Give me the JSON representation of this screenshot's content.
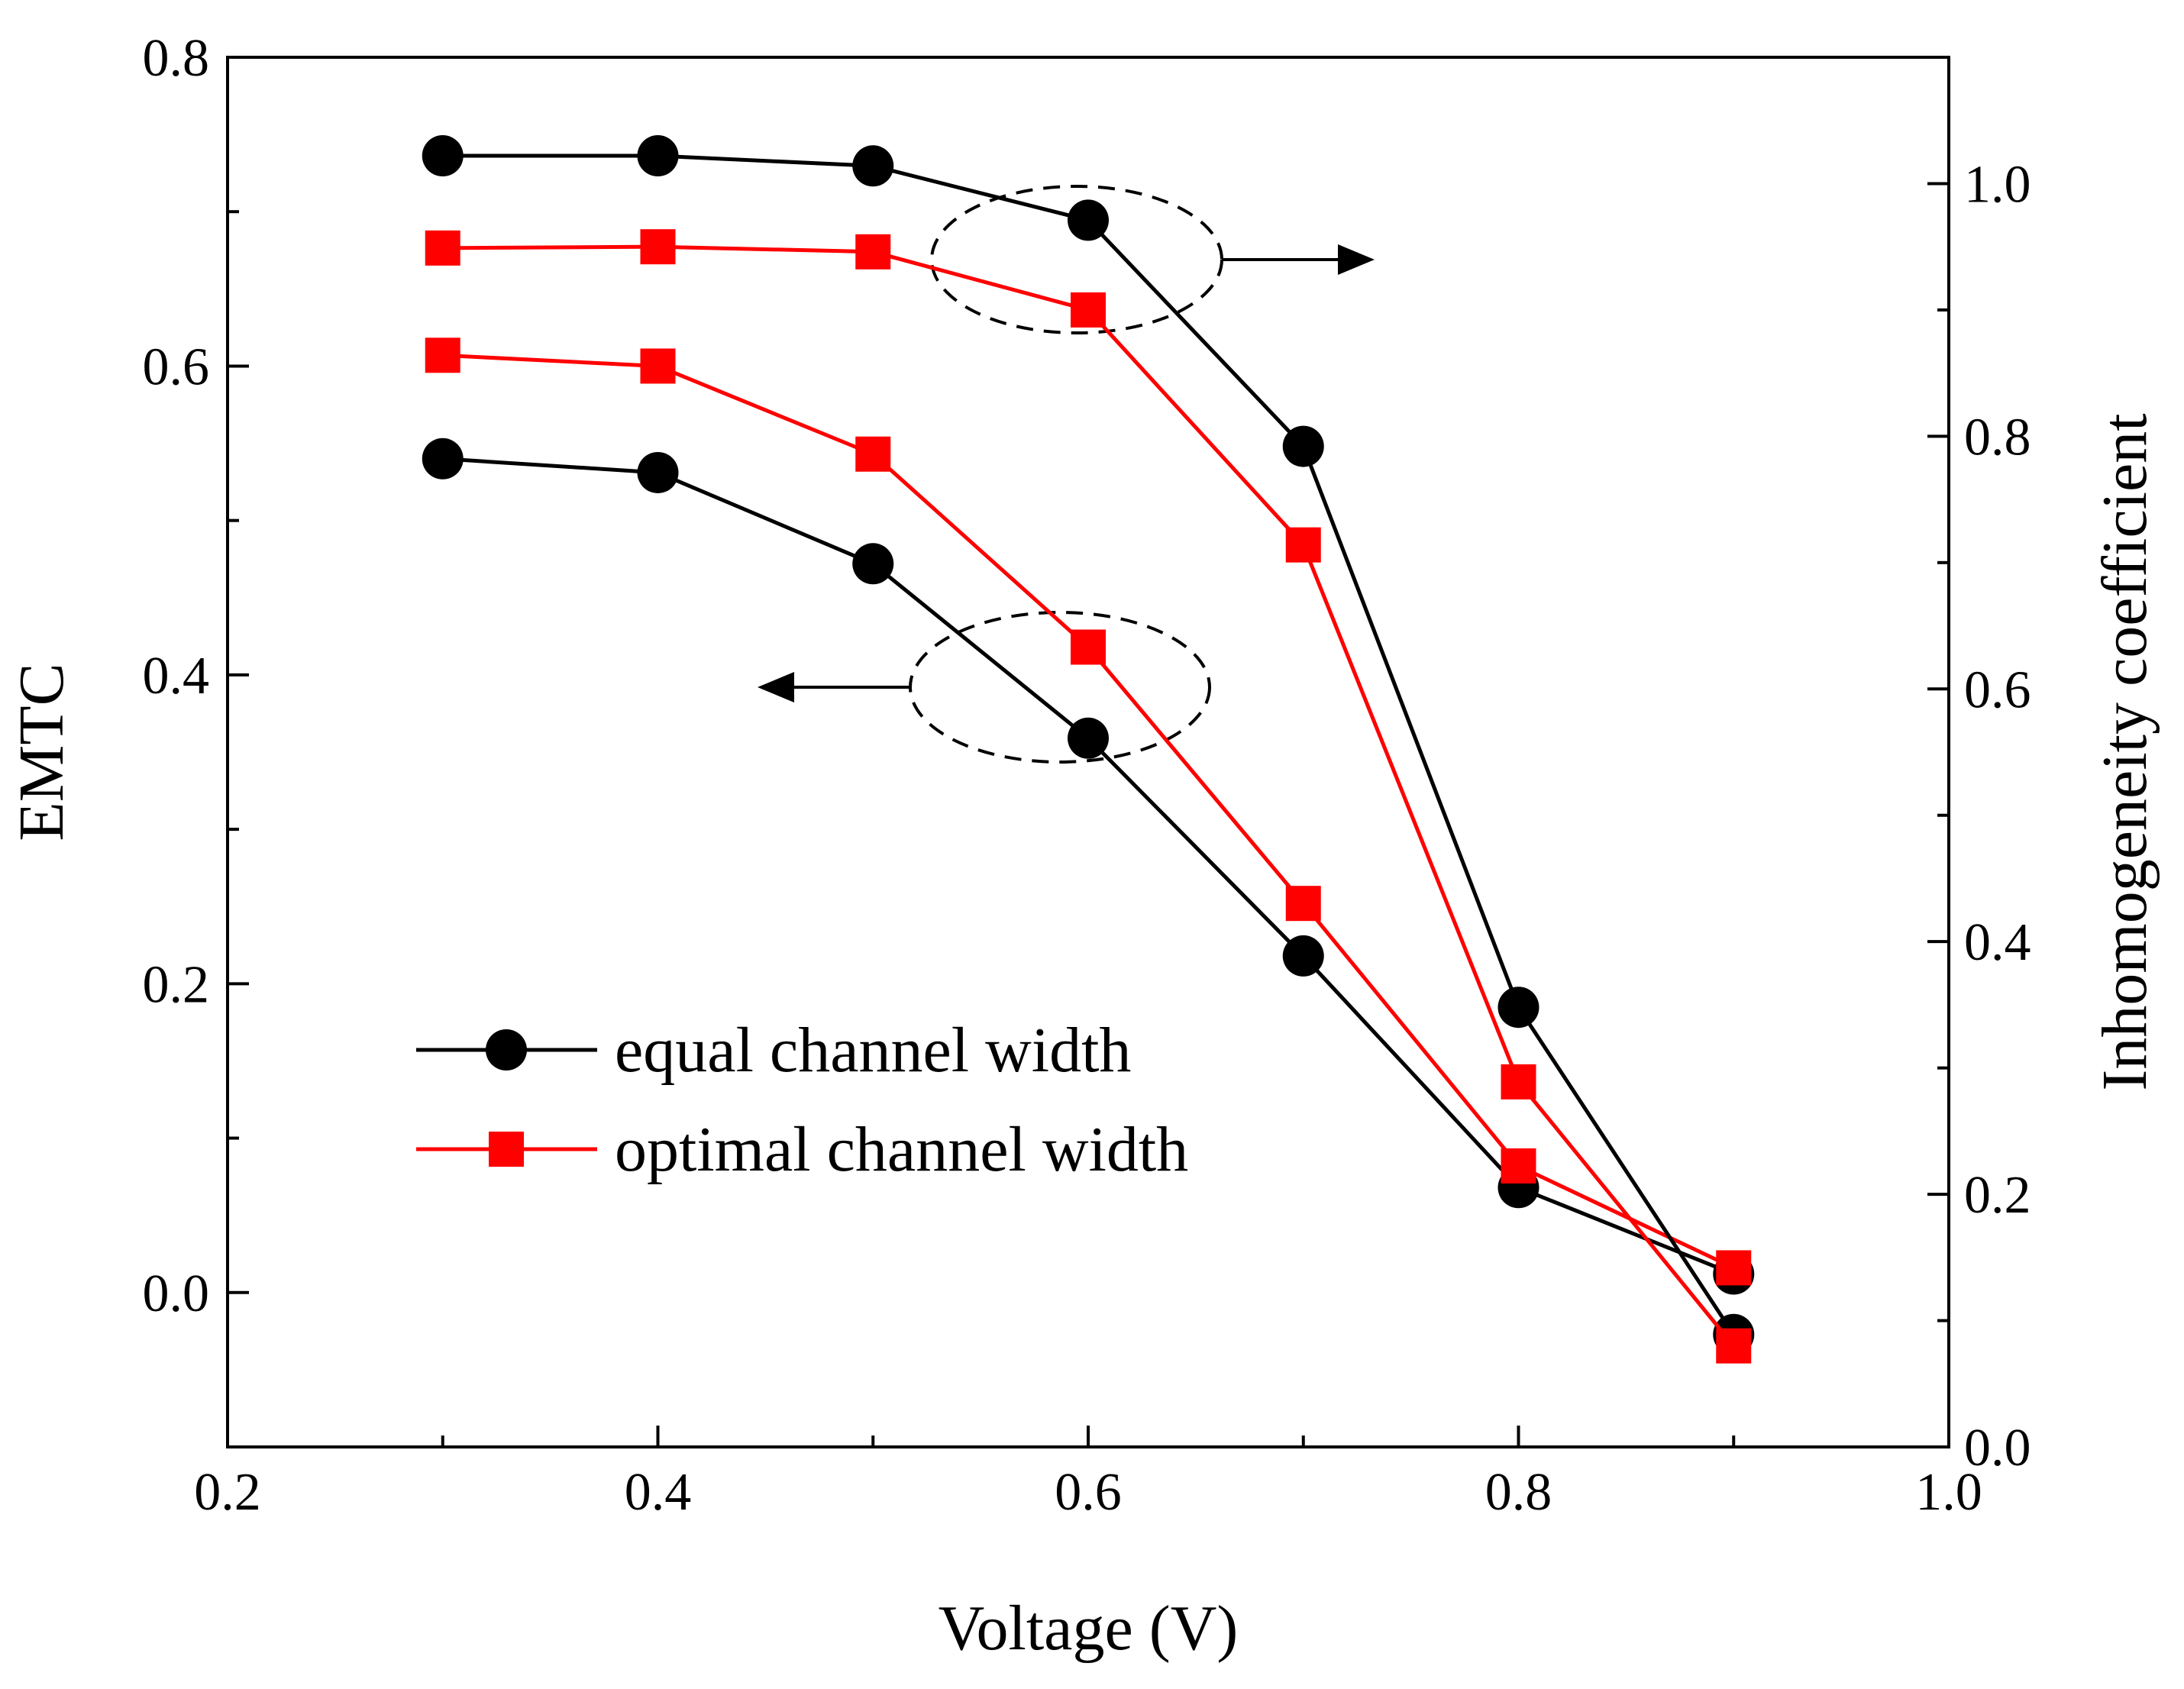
{
  "chart_data": {
    "type": "line",
    "title": "",
    "xlabel": "Voltage (V)",
    "ylabel_left": "EMTC",
    "ylabel_right": "Inhomogeneity coefficient",
    "xlim": [
      0.2,
      1.0
    ],
    "ylim_left": [
      -0.1,
      0.8
    ],
    "ylim_right": [
      0.0,
      1.1
    ],
    "x_ticks": [
      "0.2",
      "0.4",
      "0.6",
      "0.8",
      "1.0"
    ],
    "y_left_ticks": [
      "0.0",
      "0.2",
      "0.4",
      "0.6",
      "0.8"
    ],
    "y_right_ticks": [
      "0.0",
      "0.2",
      "0.4",
      "0.6",
      "0.8",
      "1.0"
    ],
    "grid": false,
    "legend_position": "bottom-left",
    "legend": [
      "equal channel width",
      "optimal channel width"
    ],
    "colors": {
      "equal": "#000000",
      "optimal": "#ff0000"
    },
    "series": [
      {
        "name": "equal channel width",
        "axis": "left",
        "marker": "circle",
        "color": "#000000",
        "x": [
          0.3,
          0.4,
          0.5,
          0.6,
          0.7,
          0.8,
          0.9
        ],
        "values": [
          0.54,
          0.531,
          0.472,
          0.359,
          0.218,
          0.068,
          0.012
        ]
      },
      {
        "name": "optimal channel width",
        "axis": "left",
        "marker": "square",
        "color": "#ff0000",
        "x": [
          0.3,
          0.4,
          0.5,
          0.6,
          0.7,
          0.8,
          0.9
        ],
        "values": [
          0.607,
          0.6,
          0.543,
          0.418,
          0.252,
          0.082,
          0.016
        ]
      },
      {
        "name": "equal channel width",
        "axis": "right",
        "marker": "circle",
        "color": "#000000",
        "x": [
          0.3,
          0.4,
          0.5,
          0.6,
          0.7,
          0.8,
          0.9
        ],
        "values": [
          1.022,
          1.022,
          1.014,
          0.971,
          0.792,
          0.348,
          0.089
        ]
      },
      {
        "name": "optimal channel width",
        "axis": "right",
        "marker": "square",
        "color": "#ff0000",
        "x": [
          0.3,
          0.4,
          0.5,
          0.6,
          0.7,
          0.8,
          0.9
        ],
        "values": [
          0.949,
          0.95,
          0.946,
          0.9,
          0.714,
          0.289,
          0.08
        ]
      }
    ],
    "annotations": [
      {
        "type": "ellipse-with-arrow",
        "direction": "right",
        "axis": "right",
        "center_x": 0.6,
        "center_y": 0.96
      },
      {
        "type": "ellipse-with-arrow",
        "direction": "left",
        "axis": "left",
        "center_x": 0.59,
        "center_y": 0.39
      }
    ]
  }
}
